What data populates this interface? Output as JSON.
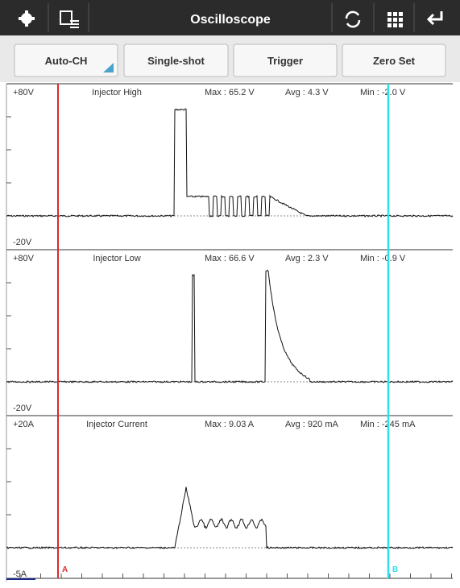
{
  "toolbar": {
    "title": "Oscilloscope"
  },
  "buttons": [
    "Auto-CH",
    "Single-shot",
    "Trigger",
    "Zero Set"
  ],
  "channels": [
    {
      "top": "+80V",
      "name": "Injector High",
      "max": "Max : 65.2 V",
      "avg": "Avg : 4.3 V",
      "min": "Min : -2.0 V",
      "bottom": "-20V"
    },
    {
      "top": "+80V",
      "name": "Injector Low",
      "max": "Max : 66.6 V",
      "avg": "Avg : 2.3 V",
      "min": "Min : -0.9 V",
      "bottom": "-20V"
    },
    {
      "top": "+20A",
      "name": "Injector Current",
      "max": "Max : 9.03 A",
      "avg": "Avg : 920 mA",
      "min": "Min : -245 mA",
      "bottom": "-5A"
    }
  ],
  "cursors": {
    "a": "A",
    "b": "B"
  }
}
